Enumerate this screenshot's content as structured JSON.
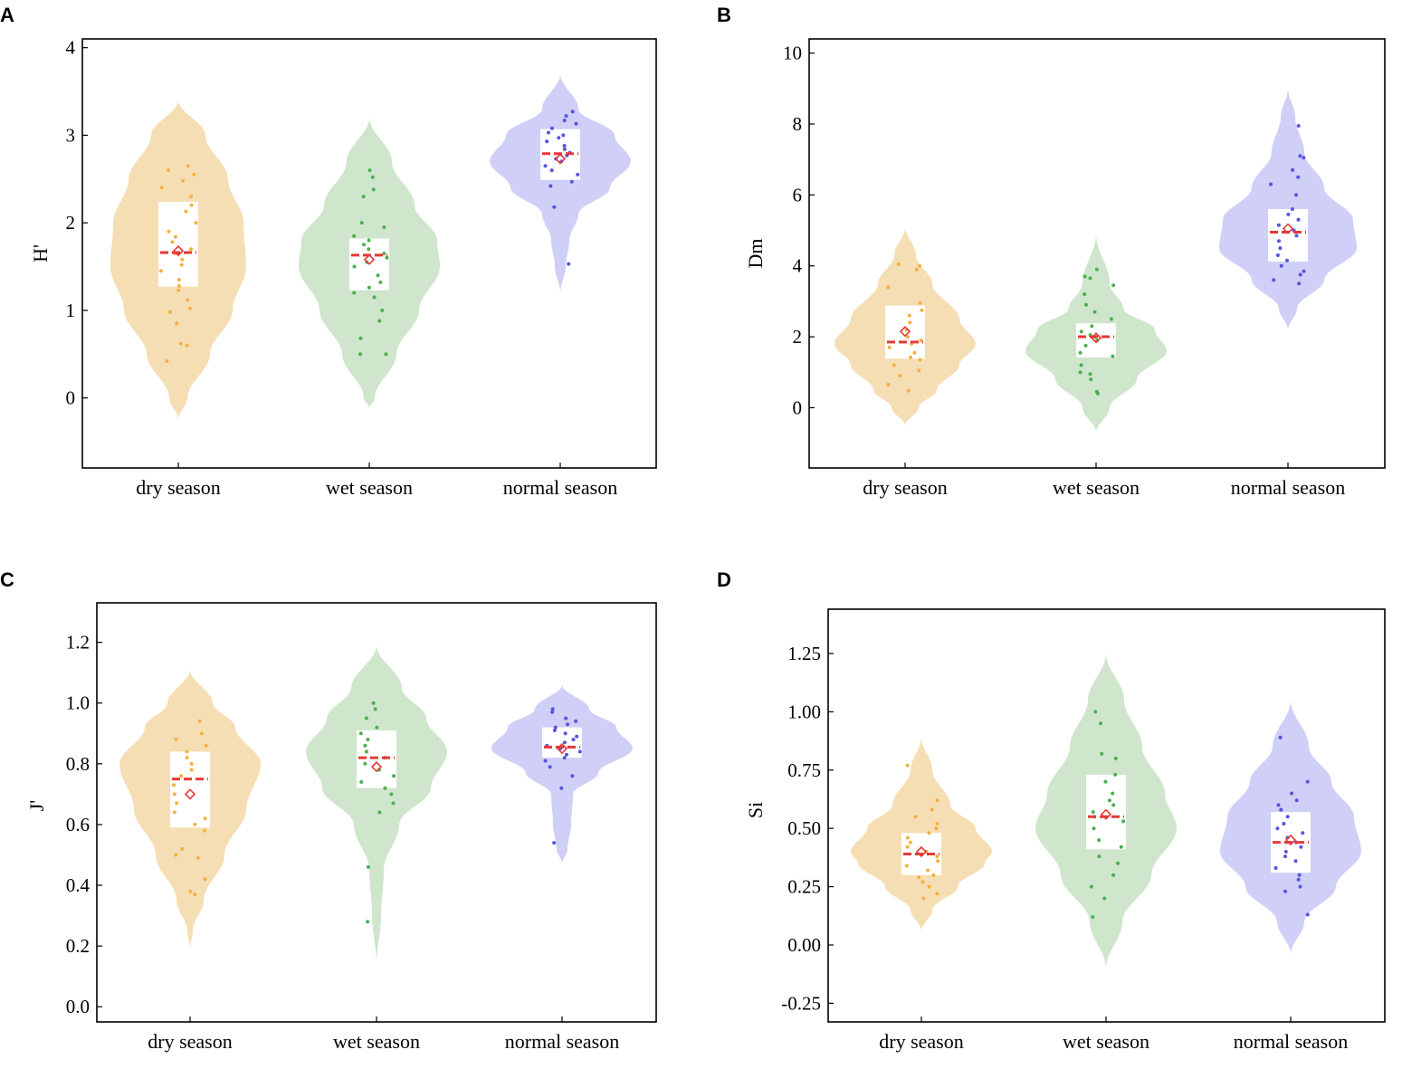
{
  "chart_data": [
    {
      "type": "violin",
      "panel": "A",
      "ylabel": "H'",
      "categories": [
        "dry season",
        "wet season",
        "normal season"
      ],
      "ylim": [
        -0.8,
        4.1
      ],
      "yticks": [
        0,
        1,
        2,
        3,
        4
      ],
      "ytick_labels": [
        "0",
        "1",
        "2",
        "3",
        "4"
      ],
      "series": [
        {
          "name": "dry season",
          "color": "#f5deb3",
          "point_color": "#f5b041",
          "violin": [
            [
              -0.25,
              0
            ],
            [
              0,
              0.1
            ],
            [
              0.5,
              0.35
            ],
            [
              1,
              0.6
            ],
            [
              1.5,
              0.75
            ],
            [
              2,
              0.72
            ],
            [
              2.5,
              0.55
            ],
            [
              3,
              0.3
            ],
            [
              3.4,
              0
            ]
          ],
          "q1": 1.27,
          "median": 1.66,
          "q3": 2.24,
          "mean": 1.68,
          "points": [
            0.42,
            0.6,
            0.62,
            0.85,
            0.98,
            1.02,
            1.12,
            1.23,
            1.28,
            1.35,
            1.45,
            1.52,
            1.58,
            1.65,
            1.7,
            1.78,
            1.84,
            1.9,
            2.0,
            2.13,
            2.2,
            2.3,
            2.4,
            2.48,
            2.55,
            2.6,
            2.65
          ]
        },
        {
          "name": "wet season",
          "color": "#cfe6cc",
          "point_color": "#4caf50",
          "violin": [
            [
              -0.12,
              0
            ],
            [
              0,
              0.06
            ],
            [
              0.5,
              0.3
            ],
            [
              1,
              0.55
            ],
            [
              1.5,
              0.78
            ],
            [
              1.8,
              0.75
            ],
            [
              2.2,
              0.5
            ],
            [
              2.7,
              0.25
            ],
            [
              3.2,
              0
            ]
          ],
          "q1": 1.23,
          "median": 1.63,
          "q3": 1.82,
          "mean": 1.58,
          "points": [
            0.5,
            0.5,
            0.68,
            0.88,
            1.0,
            1.15,
            1.2,
            1.26,
            1.32,
            1.4,
            1.5,
            1.55,
            1.6,
            1.65,
            1.7,
            1.75,
            1.8,
            1.85,
            1.95,
            2.0,
            2.3,
            2.38,
            2.52,
            2.6
          ]
        },
        {
          "name": "normal season",
          "color": "#cfcff7",
          "point_color": "#5555e0",
          "violin": [
            [
              1.2,
              0
            ],
            [
              1.5,
              0.06
            ],
            [
              1.8,
              0.1
            ],
            [
              2.1,
              0.2
            ],
            [
              2.4,
              0.55
            ],
            [
              2.7,
              0.78
            ],
            [
              3.0,
              0.6
            ],
            [
              3.3,
              0.2
            ],
            [
              3.7,
              0
            ]
          ],
          "q1": 2.49,
          "median": 2.79,
          "q3": 3.07,
          "mean": 2.73,
          "points": [
            1.53,
            2.18,
            2.42,
            2.47,
            2.55,
            2.6,
            2.65,
            2.7,
            2.73,
            2.77,
            2.8,
            2.84,
            2.88,
            2.93,
            2.97,
            3.0,
            3.03,
            3.08,
            3.13,
            3.17,
            3.22,
            3.27
          ]
        }
      ]
    },
    {
      "type": "violin",
      "panel": "B",
      "ylabel": "Dm",
      "categories": [
        "dry season",
        "wet season",
        "normal season"
      ],
      "ylim": [
        -1.7,
        10.4
      ],
      "yticks": [
        0,
        2,
        4,
        6,
        8,
        10
      ],
      "ytick_labels": [
        "0",
        "2",
        "4",
        "6",
        "8",
        "10"
      ],
      "series": [
        {
          "name": "dry season",
          "color": "#f5deb3",
          "point_color": "#f5b041",
          "violin": [
            [
              -0.5,
              0
            ],
            [
              0,
              0.15
            ],
            [
              0.5,
              0.35
            ],
            [
              1.2,
              0.6
            ],
            [
              1.8,
              0.78
            ],
            [
              2.5,
              0.6
            ],
            [
              3.5,
              0.3
            ],
            [
              4.3,
              0.12
            ],
            [
              5.1,
              0
            ]
          ],
          "q1": 1.38,
          "median": 1.85,
          "q3": 2.88,
          "mean": 2.15,
          "points": [
            0.48,
            0.65,
            0.9,
            1.05,
            1.2,
            1.35,
            1.42,
            1.55,
            1.7,
            1.8,
            1.9,
            2.0,
            2.2,
            2.4,
            2.6,
            2.75,
            2.95,
            3.4,
            3.9,
            4.0,
            4.05
          ]
        },
        {
          "name": "wet season",
          "color": "#cfe6cc",
          "point_color": "#4caf50",
          "violin": [
            [
              -0.7,
              0
            ],
            [
              0,
              0.15
            ],
            [
              0.8,
              0.45
            ],
            [
              1.6,
              0.78
            ],
            [
              2.2,
              0.65
            ],
            [
              2.8,
              0.3
            ],
            [
              3.5,
              0.15
            ],
            [
              4.9,
              0
            ]
          ],
          "q1": 1.42,
          "median": 2.0,
          "q3": 2.38,
          "mean": 1.97,
          "points": [
            0.4,
            0.45,
            0.8,
            0.95,
            1.0,
            1.2,
            1.45,
            1.55,
            1.75,
            1.9,
            2.0,
            2.05,
            2.15,
            2.3,
            2.5,
            2.7,
            2.9,
            3.2,
            3.45,
            3.65,
            3.7,
            3.9
          ]
        },
        {
          "name": "normal season",
          "color": "#cfcff7",
          "point_color": "#5555e0",
          "violin": [
            [
              2.2,
              0
            ],
            [
              2.8,
              0.1
            ],
            [
              3.6,
              0.4
            ],
            [
              4.5,
              0.76
            ],
            [
              5.3,
              0.72
            ],
            [
              6.2,
              0.4
            ],
            [
              7.2,
              0.18
            ],
            [
              8.2,
              0.08
            ],
            [
              9.0,
              0
            ]
          ],
          "q1": 4.12,
          "median": 4.95,
          "q3": 5.6,
          "mean": 5.05,
          "points": [
            3.5,
            3.6,
            3.75,
            3.85,
            4.0,
            4.15,
            4.3,
            4.5,
            4.7,
            4.85,
            5.0,
            5.15,
            5.3,
            5.45,
            5.6,
            6.0,
            6.3,
            6.5,
            6.7,
            7.05,
            7.1,
            7.95
          ]
        }
      ]
    },
    {
      "type": "violin",
      "panel": "C",
      "ylabel": "J'",
      "categories": [
        "dry season",
        "wet season",
        "normal season"
      ],
      "ylim": [
        -0.05,
        1.33
      ],
      "yticks": [
        0.0,
        0.2,
        0.4,
        0.6,
        0.8,
        1.0,
        1.2
      ],
      "ytick_labels": [
        "0.0",
        "0.2",
        "0.4",
        "0.6",
        "0.8",
        "1.0",
        "1.2"
      ],
      "series": [
        {
          "name": "dry season",
          "color": "#f5deb3",
          "point_color": "#f5b041",
          "violin": [
            [
              0.19,
              0
            ],
            [
              0.25,
              0.03
            ],
            [
              0.35,
              0.15
            ],
            [
              0.5,
              0.38
            ],
            [
              0.65,
              0.62
            ],
            [
              0.8,
              0.78
            ],
            [
              0.92,
              0.5
            ],
            [
              1.0,
              0.25
            ],
            [
              1.11,
              0
            ]
          ],
          "q1": 0.59,
          "median": 0.75,
          "q3": 0.84,
          "mean": 0.7,
          "points": [
            0.37,
            0.38,
            0.42,
            0.49,
            0.5,
            0.52,
            0.58,
            0.6,
            0.62,
            0.64,
            0.67,
            0.7,
            0.73,
            0.76,
            0.78,
            0.8,
            0.82,
            0.84,
            0.86,
            0.88,
            0.9,
            0.94
          ]
        },
        {
          "name": "wet season",
          "color": "#cfe6cc",
          "point_color": "#4caf50",
          "violin": [
            [
              0.14,
              0
            ],
            [
              0.3,
              0.05
            ],
            [
              0.45,
              0.08
            ],
            [
              0.6,
              0.25
            ],
            [
              0.72,
              0.6
            ],
            [
              0.84,
              0.78
            ],
            [
              0.95,
              0.55
            ],
            [
              1.05,
              0.28
            ],
            [
              1.19,
              0
            ]
          ],
          "q1": 0.72,
          "median": 0.82,
          "q3": 0.91,
          "mean": 0.79,
          "points": [
            0.28,
            0.46,
            0.64,
            0.67,
            0.7,
            0.72,
            0.74,
            0.76,
            0.78,
            0.8,
            0.82,
            0.84,
            0.86,
            0.88,
            0.9,
            0.92,
            0.95,
            0.98,
            1.0
          ]
        },
        {
          "name": "normal season",
          "color": "#cfcff7",
          "point_color": "#5555e0",
          "violin": [
            [
              0.47,
              0
            ],
            [
              0.52,
              0.06
            ],
            [
              0.6,
              0.1
            ],
            [
              0.7,
              0.12
            ],
            [
              0.77,
              0.4
            ],
            [
              0.85,
              0.78
            ],
            [
              0.92,
              0.6
            ],
            [
              0.98,
              0.3
            ],
            [
              1.06,
              0
            ]
          ],
          "q1": 0.82,
          "median": 0.855,
          "q3": 0.92,
          "mean": 0.85,
          "points": [
            0.54,
            0.72,
            0.76,
            0.79,
            0.81,
            0.82,
            0.83,
            0.84,
            0.85,
            0.86,
            0.87,
            0.88,
            0.89,
            0.9,
            0.91,
            0.92,
            0.93,
            0.94,
            0.95,
            0.97,
            0.98
          ]
        }
      ]
    },
    {
      "type": "violin",
      "panel": "D",
      "ylabel": "Si",
      "categories": [
        "dry season",
        "wet season",
        "normal season"
      ],
      "ylim": [
        -0.33,
        1.44
      ],
      "yticks": [
        -0.25,
        0.0,
        0.25,
        0.5,
        0.75,
        1.0,
        1.25
      ],
      "ytick_labels": [
        "-0.25",
        "0.00",
        "0.25",
        "0.50",
        "0.75",
        "1.00",
        "1.25"
      ],
      "series": [
        {
          "name": "dry season",
          "color": "#f5deb3",
          "point_color": "#f5b041",
          "violin": [
            [
              0.06,
              0
            ],
            [
              0.15,
              0.12
            ],
            [
              0.25,
              0.4
            ],
            [
              0.35,
              0.7
            ],
            [
              0.4,
              0.78
            ],
            [
              0.5,
              0.6
            ],
            [
              0.6,
              0.32
            ],
            [
              0.75,
              0.12
            ],
            [
              0.89,
              0
            ]
          ],
          "q1": 0.3,
          "median": 0.39,
          "q3": 0.48,
          "mean": 0.4,
          "points": [
            0.2,
            0.22,
            0.25,
            0.27,
            0.29,
            0.3,
            0.32,
            0.34,
            0.36,
            0.38,
            0.4,
            0.42,
            0.44,
            0.46,
            0.48,
            0.5,
            0.52,
            0.55,
            0.58,
            0.62,
            0.77
          ]
        },
        {
          "name": "wet season",
          "color": "#cfe6cc",
          "point_color": "#4caf50",
          "violin": [
            [
              -0.1,
              0
            ],
            [
              0.1,
              0.18
            ],
            [
              0.3,
              0.5
            ],
            [
              0.5,
              0.78
            ],
            [
              0.65,
              0.65
            ],
            [
              0.85,
              0.4
            ],
            [
              1.05,
              0.2
            ],
            [
              1.25,
              0
            ]
          ],
          "q1": 0.41,
          "median": 0.55,
          "q3": 0.73,
          "mean": 0.56,
          "points": [
            0.12,
            0.2,
            0.25,
            0.3,
            0.35,
            0.38,
            0.42,
            0.45,
            0.5,
            0.53,
            0.55,
            0.57,
            0.6,
            0.62,
            0.65,
            0.7,
            0.73,
            0.8,
            0.82,
            0.95,
            1.0
          ]
        },
        {
          "name": "normal season",
          "color": "#cfcff7",
          "point_color": "#5555e0",
          "violin": [
            [
              -0.04,
              0
            ],
            [
              0.1,
              0.15
            ],
            [
              0.25,
              0.5
            ],
            [
              0.4,
              0.78
            ],
            [
              0.55,
              0.7
            ],
            [
              0.7,
              0.45
            ],
            [
              0.85,
              0.2
            ],
            [
              1.05,
              0
            ]
          ],
          "q1": 0.31,
          "median": 0.44,
          "q3": 0.57,
          "mean": 0.45,
          "points": [
            0.13,
            0.23,
            0.25,
            0.28,
            0.3,
            0.33,
            0.36,
            0.38,
            0.4,
            0.42,
            0.44,
            0.46,
            0.48,
            0.5,
            0.52,
            0.55,
            0.58,
            0.6,
            0.62,
            0.65,
            0.7,
            0.89
          ]
        }
      ]
    }
  ],
  "colors": {
    "median_line": "#e53935",
    "mean_marker": "#e53935",
    "box_fill": "#ffffff",
    "axis": "#000000"
  }
}
